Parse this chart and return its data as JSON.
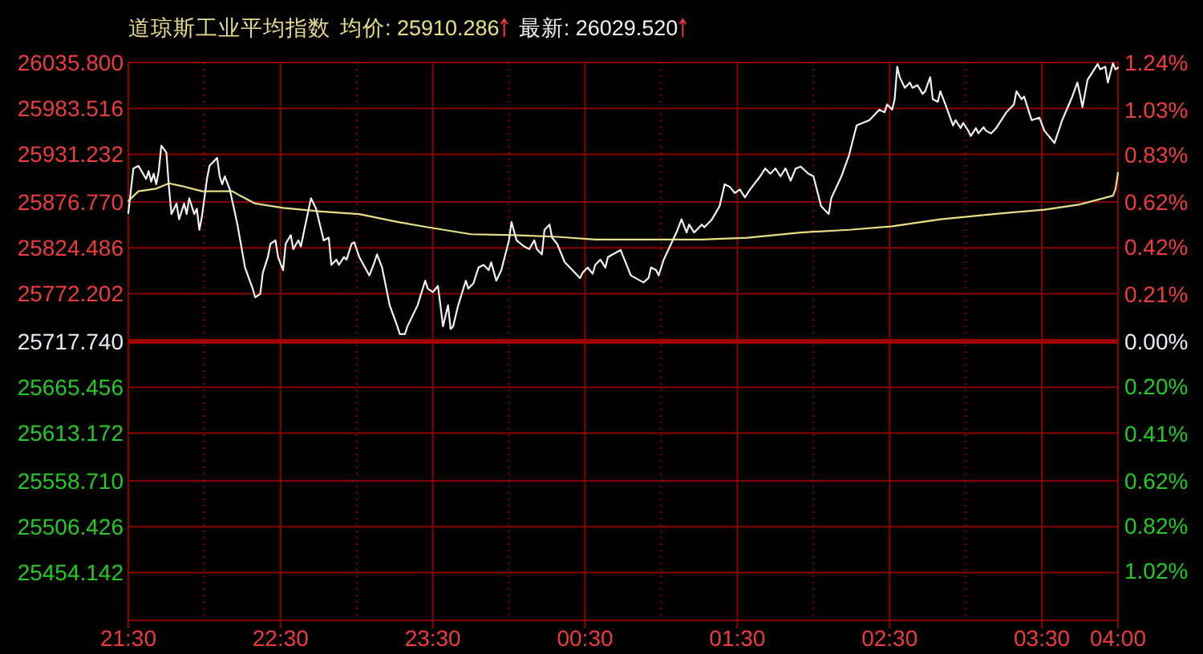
{
  "chart_data": {
    "type": "line",
    "title": "道琼斯工业平均指数",
    "legend": "top",
    "grid": true,
    "xlim": [
      "2000-01-01T21:30",
      "2000-01-02T04:00"
    ],
    "xticks": [
      {
        "value": "2000-01-01T21:30",
        "label": "21:30"
      },
      {
        "value": "2000-01-01T22:00",
        "label": null
      },
      {
        "value": "2000-01-01T22:30",
        "label": "22:30"
      },
      {
        "value": "2000-01-01T23:00",
        "label": null
      },
      {
        "value": "2000-01-01T23:30",
        "label": "23:30"
      },
      {
        "value": "2000-01-02T00:00",
        "label": null
      },
      {
        "value": "2000-01-02T00:30",
        "label": "00:30"
      },
      {
        "value": "2000-01-02T01:00",
        "label": null
      },
      {
        "value": "2000-01-02T01:30",
        "label": "01:30"
      },
      {
        "value": "2000-01-02T02:00",
        "label": null
      },
      {
        "value": "2000-01-02T02:30",
        "label": "02:30"
      },
      {
        "value": "2000-01-02T03:00",
        "label": null
      },
      {
        "value": "2000-01-02T03:30",
        "label": "03:30"
      },
      {
        "value": "2000-01-02T04:00",
        "label": "04:00"
      }
    ],
    "ylim": [
      25399.68,
      26035.8
    ],
    "yticks": [
      {
        "value": 26035.8,
        "label": "26035.800"
      },
      {
        "value": 25983.516,
        "label": "25983.516"
      },
      {
        "value": 25931.232,
        "label": "25931.232"
      },
      {
        "value": 25876.77,
        "label": "25876.770"
      },
      {
        "value": 25824.486,
        "label": "25824.486"
      },
      {
        "value": 25772.202,
        "label": "25772.202"
      },
      {
        "value": 25717.74,
        "label": "25717.740"
      },
      {
        "value": 25665.456,
        "label": "25665.456"
      },
      {
        "value": 25613.172,
        "label": "25613.172"
      },
      {
        "value": 25558.71,
        "label": "25558.710"
      },
      {
        "value": 25506.426,
        "label": "25506.426"
      },
      {
        "value": 25454.142,
        "label": "25454.142"
      }
    ],
    "y2lim": [
      -1.24,
      1.24
    ],
    "y2ticks": [
      {
        "value": 1.24,
        "label": "1.24%"
      },
      {
        "value": 1.03,
        "label": "1.03%"
      },
      {
        "value": 0.83,
        "label": "0.83%"
      },
      {
        "value": 0.62,
        "label": "0.62%"
      },
      {
        "value": 0.42,
        "label": "0.42%"
      },
      {
        "value": 0.21,
        "label": "0.21%"
      },
      {
        "value": 0,
        "label": "0.00%"
      },
      {
        "value": -0.2,
        "label": "0.20%"
      },
      {
        "value": -0.41,
        "label": "0.41%"
      },
      {
        "value": -0.62,
        "label": "0.62%"
      },
      {
        "value": -0.82,
        "label": "0.82%"
      },
      {
        "value": -1.02,
        "label": "1.02%"
      }
    ],
    "ref_lines": [
      {
        "axis": "y",
        "value": 25717.74,
        "color": "#a00000"
      }
    ],
    "series": [
      {
        "name": "均价: 25910.286",
        "color": "#e8e082",
        "x": [
          "2000-01-01T21:30",
          "2000-01-01T21:34",
          "2000-01-01T21:41",
          "2000-01-01T21:46",
          "2000-01-01T21:51",
          "2000-01-01T21:59",
          "2000-01-01T22:11",
          "2000-01-01T22:14",
          "2000-01-01T22:20",
          "2000-01-01T22:31",
          "2000-01-01T22:46",
          "2000-01-01T23:01",
          "2000-01-01T23:16",
          "2000-01-01T23:28",
          "2000-01-01T23:45",
          "2000-01-02T00:02",
          "2000-01-02T00:19",
          "2000-01-02T00:34",
          "2000-01-02T00:46",
          "2000-01-02T00:59",
          "2000-01-02T01:16",
          "2000-01-02T01:34",
          "2000-01-02T01:55",
          "2000-01-02T02:14",
          "2000-01-02T02:31",
          "2000-01-02T02:50",
          "2000-01-02T03:11",
          "2000-01-02T03:31",
          "2000-01-02T03:45",
          "2000-01-02T03:58",
          "2000-01-02T03:59",
          "2000-01-02T04:00"
        ],
        "values": [
          25878,
          25889,
          25892,
          25898,
          25895,
          25889,
          25889,
          25884,
          25875,
          25870,
          25866,
          25863,
          25854,
          25848,
          25840,
          25839,
          25837,
          25834,
          25834,
          25834,
          25834,
          25836,
          25842,
          25845,
          25849,
          25857,
          25863,
          25868,
          25874,
          25884,
          25891,
          25910
        ]
      },
      {
        "name": "最新: 26029.520",
        "color": "#f2f2f2",
        "x": [
          "2000-01-01T21:30",
          "2000-01-01T21:32",
          "2000-01-01T21:34",
          "2000-01-01T21:37",
          "2000-01-01T21:38",
          "2000-01-01T21:39",
          "2000-01-01T21:40",
          "2000-01-01T21:41",
          "2000-01-01T21:42",
          "2000-01-01T21:43",
          "2000-01-01T21:45",
          "2000-01-01T21:46",
          "2000-01-01T21:47",
          "2000-01-01T21:49",
          "2000-01-01T21:50",
          "2000-01-01T21:52",
          "2000-01-01T21:53",
          "2000-01-01T21:54",
          "2000-01-01T21:56",
          "2000-01-01T21:57",
          "2000-01-01T21:58",
          "2000-01-01T21:59",
          "2000-01-01T22:01",
          "2000-01-01T22:02",
          "2000-01-01T22:05",
          "2000-01-01T22:06",
          "2000-01-01T22:07",
          "2000-01-01T22:08",
          "2000-01-01T22:10",
          "2000-01-01T22:13",
          "2000-01-01T22:16",
          "2000-01-01T22:19",
          "2000-01-01T22:20",
          "2000-01-01T22:22",
          "2000-01-01T22:23",
          "2000-01-01T22:25",
          "2000-01-01T22:26",
          "2000-01-01T22:28",
          "2000-01-01T22:29",
          "2000-01-01T22:31",
          "2000-01-01T22:32",
          "2000-01-01T22:34",
          "2000-01-01T22:35",
          "2000-01-01T22:37",
          "2000-01-01T22:38",
          "2000-01-01T22:40",
          "2000-01-01T22:42",
          "2000-01-01T22:44",
          "2000-01-01T22:47",
          "2000-01-01T22:49",
          "2000-01-01T22:50",
          "2000-01-01T22:52",
          "2000-01-01T22:53",
          "2000-01-01T22:55",
          "2000-01-01T22:56",
          "2000-01-01T22:58",
          "2000-01-01T22:59",
          "2000-01-01T23:01",
          "2000-01-01T23:05",
          "2000-01-01T23:07",
          "2000-01-01T23:08",
          "2000-01-01T23:10",
          "2000-01-01T23:13",
          "2000-01-01T23:16",
          "2000-01-01T23:17",
          "2000-01-01T23:19",
          "2000-01-01T23:20",
          "2000-01-01T23:24",
          "2000-01-01T23:27",
          "2000-01-01T23:28",
          "2000-01-01T23:30",
          "2000-01-01T23:32",
          "2000-01-01T23:33",
          "2000-01-01T23:34",
          "2000-01-01T23:36",
          "2000-01-01T23:37",
          "2000-01-01T23:38",
          "2000-01-01T23:40",
          "2000-01-01T23:43",
          "2000-01-01T23:44",
          "2000-01-01T23:46",
          "2000-01-01T23:48",
          "2000-01-01T23:50",
          "2000-01-01T23:52",
          "2000-01-01T23:53",
          "2000-01-01T23:55",
          "2000-01-01T23:57",
          "2000-01-02T00:00",
          "2000-01-02T00:01",
          "2000-01-02T00:03",
          "2000-01-02T00:06",
          "2000-01-02T00:08",
          "2000-01-02T00:10",
          "2000-01-02T00:11",
          "2000-01-02T00:13",
          "2000-01-02T00:14",
          "2000-01-02T00:16",
          "2000-01-02T00:17",
          "2000-01-02T00:19",
          "2000-01-02T00:22",
          "2000-01-02T00:25",
          "2000-01-02T00:28",
          "2000-01-02T00:29",
          "2000-01-02T00:31",
          "2000-01-02T00:33",
          "2000-01-02T00:34",
          "2000-01-02T00:36",
          "2000-01-02T00:38",
          "2000-01-02T00:39",
          "2000-01-02T00:44",
          "2000-01-02T00:48",
          "2000-01-02T00:53",
          "2000-01-02T00:55",
          "2000-01-02T00:56",
          "2000-01-02T00:58",
          "2000-01-02T00:59",
          "2000-01-02T01:01",
          "2000-01-02T01:06",
          "2000-01-02T01:08",
          "2000-01-02T01:10",
          "2000-01-02T01:11",
          "2000-01-02T01:13",
          "2000-01-02T01:16",
          "2000-01-02T01:17",
          "2000-01-02T01:20",
          "2000-01-02T01:23",
          "2000-01-02T01:25",
          "2000-01-02T01:27",
          "2000-01-02T01:29",
          "2000-01-02T01:31",
          "2000-01-02T01:33",
          "2000-01-02T01:35",
          "2000-01-02T01:39",
          "2000-01-02T01:41",
          "2000-01-02T01:43",
          "2000-01-02T01:45",
          "2000-01-02T01:47",
          "2000-01-02T01:49",
          "2000-01-02T01:51",
          "2000-01-02T01:53",
          "2000-01-02T01:55",
          "2000-01-02T01:58",
          "2000-01-02T02:00",
          "2000-01-02T02:03",
          "2000-01-02T02:06",
          "2000-01-02T02:07",
          "2000-01-02T02:11",
          "2000-01-02T02:14",
          "2000-01-02T02:17",
          "2000-01-02T02:22",
          "2000-01-02T02:26",
          "2000-01-02T02:28",
          "2000-01-02T02:29",
          "2000-01-02T02:31",
          "2000-01-02T02:32",
          "2000-01-02T02:33",
          "2000-01-02T02:34",
          "2000-01-02T02:36",
          "2000-01-02T02:38",
          "2000-01-02T02:39",
          "2000-01-02T02:41",
          "2000-01-02T02:43",
          "2000-01-02T02:44",
          "2000-01-02T02:46",
          "2000-01-02T02:47",
          "2000-01-02T02:49",
          "2000-01-02T02:50",
          "2000-01-02T02:52",
          "2000-01-02T02:55",
          "2000-01-02T02:56",
          "2000-01-02T02:58",
          "2000-01-02T02:59",
          "2000-01-02T03:01",
          "2000-01-02T03:02",
          "2000-01-02T03:04",
          "2000-01-02T03:05",
          "2000-01-02T03:07",
          "2000-01-02T03:08",
          "2000-01-02T03:10",
          "2000-01-02T03:12",
          "2000-01-02T03:16",
          "2000-01-02T03:19",
          "2000-01-02T03:20",
          "2000-01-02T03:22",
          "2000-01-02T03:23",
          "2000-01-02T03:26",
          "2000-01-02T03:29",
          "2000-01-02T03:31",
          "2000-01-02T03:35",
          "2000-01-02T03:38",
          "2000-01-02T03:42",
          "2000-01-02T03:44",
          "2000-01-02T03:45",
          "2000-01-02T03:46",
          "2000-01-02T03:48",
          "2000-01-02T03:52",
          "2000-01-02T03:53",
          "2000-01-02T03:55",
          "2000-01-02T03:56",
          "2000-01-02T03:58",
          "2000-01-02T03:59",
          "2000-01-02T04:00"
        ],
        "values": [
          25864,
          25915,
          25918,
          25903,
          25912,
          25900,
          25909,
          25897,
          25912,
          25941,
          25933,
          25894,
          25863,
          25875,
          25857,
          25875,
          25863,
          25881,
          25863,
          25869,
          25845,
          25860,
          25903,
          25918,
          25927,
          25906,
          25897,
          25906,
          25891,
          25851,
          25802,
          25778,
          25768,
          25772,
          25796,
          25814,
          25829,
          25833,
          25814,
          25799,
          25829,
          25839,
          25823,
          25833,
          25826,
          25854,
          25881,
          25869,
          25833,
          25836,
          25805,
          25811,
          25805,
          25814,
          25811,
          25829,
          25831,
          25814,
          25793,
          25808,
          25817,
          25802,
          25759,
          25735,
          25726,
          25726,
          25735,
          25759,
          25787,
          25778,
          25774,
          25781,
          25759,
          25735,
          25759,
          25732,
          25735,
          25759,
          25787,
          25778,
          25784,
          25802,
          25805,
          25799,
          25808,
          25787,
          25799,
          25833,
          25854,
          25833,
          25826,
          25823,
          25833,
          25823,
          25817,
          25845,
          25851,
          25836,
          25829,
          25808,
          25799,
          25790,
          25796,
          25802,
          25795,
          25805,
          25811,
          25802,
          25814,
          25822,
          25793,
          25785,
          25790,
          25802,
          25799,
          25793,
          25811,
          25842,
          25857,
          25842,
          25851,
          25842,
          25851,
          25848,
          25857,
          25872,
          25897,
          25894,
          25887,
          25891,
          25882,
          25891,
          25906,
          25915,
          25909,
          25915,
          25906,
          25915,
          25901,
          25915,
          25917,
          25909,
          25906,
          25872,
          25863,
          25881,
          25906,
          25930,
          25964,
          25970,
          25982,
          25979,
          25988,
          25982,
          25994,
          26031,
          26019,
          26007,
          26013,
          26007,
          26010,
          26000,
          26003,
          26019,
          25994,
          25991,
          26003,
          25988,
          25964,
          25970,
          25961,
          25967,
          25958,
          25952,
          25961,
          25955,
          25962,
          25958,
          25955,
          25961,
          25979,
          25988,
          26003,
          25994,
          25997,
          25970,
          25973,
          25958,
          25944,
          25970,
          25997,
          26013,
          26000,
          25985,
          26016,
          26034,
          26028,
          26031,
          26013,
          26035,
          26028,
          26030
        ]
      }
    ]
  }
}
